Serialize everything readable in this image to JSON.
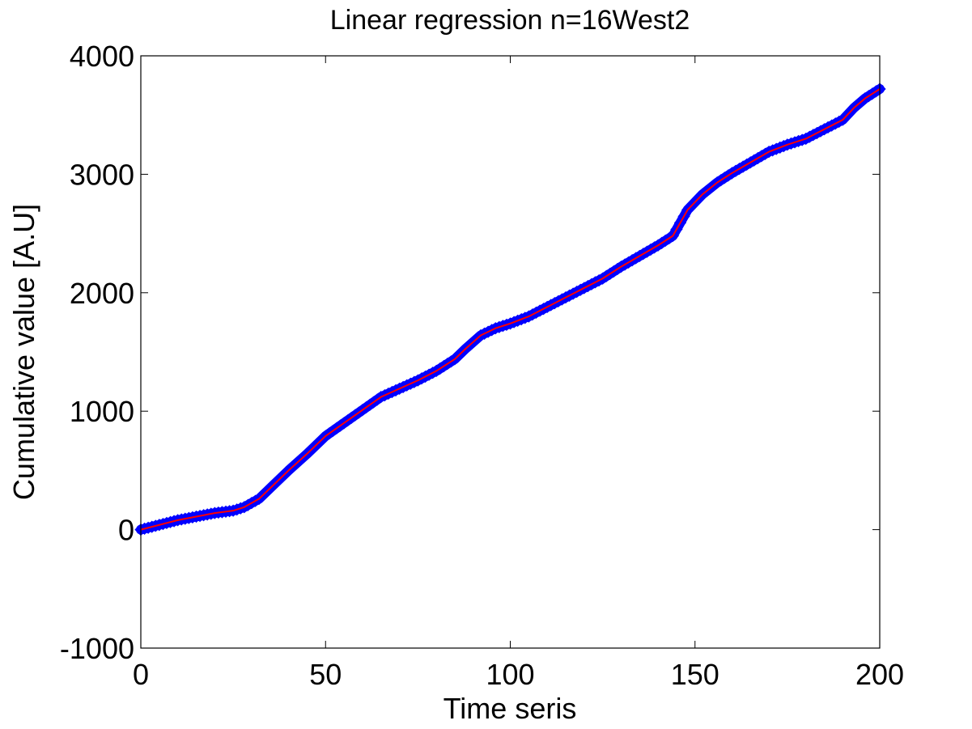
{
  "chart_data": {
    "type": "line",
    "title": "Linear regression n=16West2",
    "xlabel": "Time seris",
    "ylabel": "Cumulative value [A.U]",
    "xlim": [
      0,
      200
    ],
    "ylim": [
      -1000,
      4000
    ],
    "xticks": [
      0,
      50,
      100,
      150,
      200
    ],
    "yticks": [
      -1000,
      0,
      1000,
      2000,
      3000,
      4000
    ],
    "grid": false,
    "legend": "none",
    "series": [
      {
        "marker": "diamond",
        "color": "#0000ff",
        "x": [
          0,
          5,
          10,
          15,
          20,
          25,
          28,
          32,
          36,
          40,
          45,
          50,
          55,
          60,
          65,
          70,
          75,
          80,
          85,
          88,
          92,
          96,
          100,
          105,
          110,
          115,
          120,
          125,
          130,
          135,
          140,
          144,
          148,
          152,
          156,
          160,
          165,
          170,
          175,
          180,
          185,
          190,
          193,
          196,
          200
        ],
        "y": [
          0,
          40,
          80,
          110,
          140,
          160,
          190,
          260,
          380,
          500,
          640,
          790,
          900,
          1010,
          1120,
          1190,
          1260,
          1340,
          1440,
          1530,
          1640,
          1700,
          1740,
          1800,
          1880,
          1960,
          2040,
          2120,
          2220,
          2310,
          2400,
          2480,
          2700,
          2830,
          2930,
          3010,
          3100,
          3190,
          3250,
          3300,
          3380,
          3460,
          3560,
          3640,
          3720
        ]
      },
      {
        "marker": "none",
        "color": "#ff0000",
        "x": [
          0,
          5,
          10,
          15,
          20,
          25,
          28,
          32,
          36,
          40,
          45,
          50,
          55,
          60,
          65,
          70,
          75,
          80,
          85,
          88,
          92,
          96,
          100,
          105,
          110,
          115,
          120,
          125,
          130,
          135,
          140,
          144,
          148,
          152,
          156,
          160,
          165,
          170,
          175,
          180,
          185,
          190,
          193,
          196,
          200
        ],
        "y": [
          0,
          40,
          80,
          110,
          140,
          160,
          190,
          260,
          380,
          500,
          640,
          790,
          900,
          1010,
          1120,
          1190,
          1260,
          1340,
          1440,
          1530,
          1640,
          1700,
          1740,
          1800,
          1880,
          1960,
          2040,
          2120,
          2220,
          2310,
          2400,
          2480,
          2700,
          2830,
          2930,
          3010,
          3100,
          3190,
          3250,
          3300,
          3380,
          3460,
          3560,
          3640,
          3720
        ]
      }
    ]
  }
}
